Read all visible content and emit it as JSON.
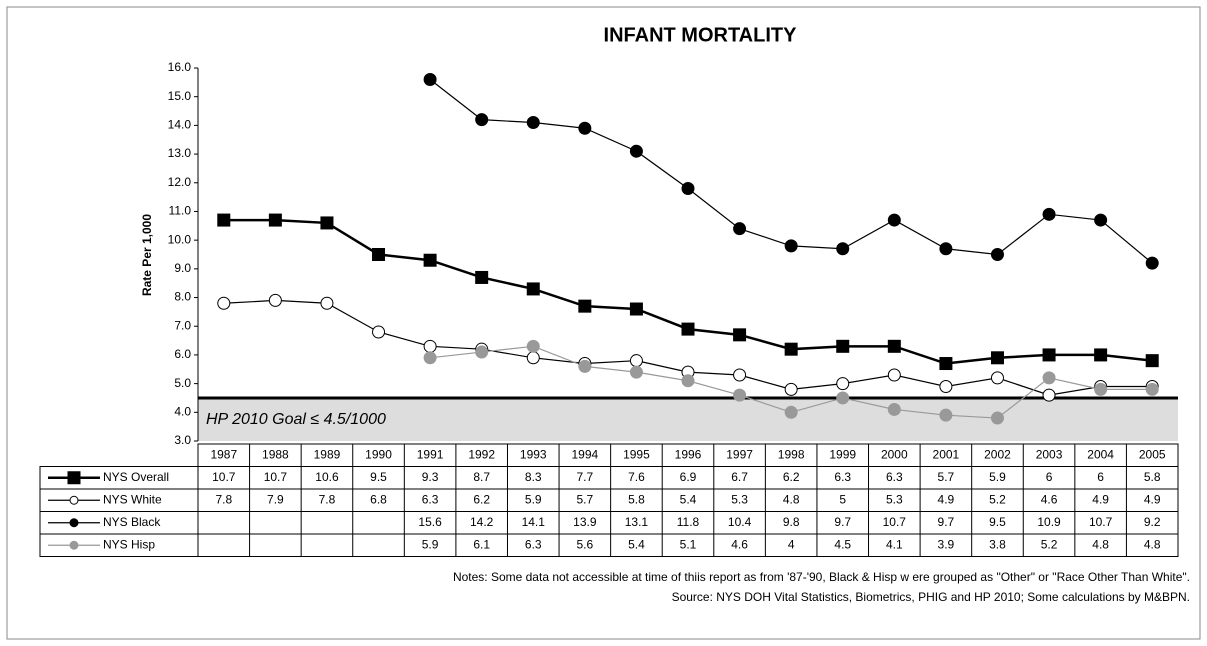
{
  "chart_data": {
    "type": "line",
    "title": "INFANT MORTALITY",
    "y_label": "Rate Per 1,000",
    "categories": [
      "1987",
      "1988",
      "1989",
      "1990",
      "1991",
      "1992",
      "1993",
      "1994",
      "1995",
      "1996",
      "1997",
      "1998",
      "1999",
      "2000",
      "2001",
      "2002",
      "2003",
      "2004",
      "2005"
    ],
    "series": [
      {
        "name": "NYS Overall",
        "color": "#000000",
        "marker": "square",
        "marker_fill": "#000000",
        "values": [
          10.7,
          10.7,
          10.6,
          9.5,
          9.3,
          8.7,
          8.3,
          7.7,
          7.6,
          6.9,
          6.7,
          6.2,
          6.3,
          6.3,
          5.7,
          5.9,
          6,
          6,
          5.8
        ]
      },
      {
        "name": "NYS White",
        "color": "#000000",
        "marker": "circle",
        "marker_fill": "#ffffff",
        "values": [
          7.8,
          7.9,
          7.8,
          6.8,
          6.3,
          6.2,
          5.9,
          5.7,
          5.8,
          5.4,
          5.3,
          4.8,
          5,
          5.3,
          4.9,
          5.2,
          4.6,
          4.9,
          4.9
        ]
      },
      {
        "name": "NYS Black",
        "color": "#000000",
        "marker": "circle",
        "marker_fill": "#000000",
        "values": [
          null,
          null,
          null,
          null,
          15.6,
          14.2,
          14.1,
          13.9,
          13.1,
          11.8,
          10.4,
          9.8,
          9.7,
          10.7,
          9.7,
          9.5,
          10.9,
          10.7,
          9.2
        ]
      },
      {
        "name": "NYS Hisp",
        "color": "#999999",
        "marker": "circle",
        "marker_fill": "#999999",
        "values": [
          null,
          null,
          null,
          null,
          5.9,
          6.1,
          6.3,
          5.6,
          5.4,
          5.1,
          4.6,
          4,
          4.5,
          4.1,
          3.9,
          3.8,
          5.2,
          4.8,
          4.8
        ]
      }
    ],
    "ylim": [
      3,
      16
    ],
    "yticks": [
      {
        "value": 3,
        "label": "3.0"
      },
      {
        "value": 4,
        "label": "4.0"
      },
      {
        "value": 5,
        "label": "5.0"
      },
      {
        "value": 6,
        "label": "6.0"
      },
      {
        "value": 7,
        "label": "7.0"
      },
      {
        "value": 8,
        "label": "8.0"
      },
      {
        "value": 9,
        "label": "9.0"
      },
      {
        "value": 10,
        "label": "10.0"
      },
      {
        "value": 11,
        "label": "11.0"
      },
      {
        "value": 12,
        "label": "12.0"
      },
      {
        "value": 13,
        "label": "13.0"
      },
      {
        "value": 14,
        "label": "14.0"
      },
      {
        "value": 15,
        "label": "15.0"
      },
      {
        "value": 16,
        "label": "16.0"
      }
    ],
    "goal": {
      "value": 4.5,
      "label": "HP 2010 Goal  ≤ 4.5/1000"
    },
    "notes": [
      "Notes: Some data not accessible at time of thiis report as from '87-'90, Black & Hisp w ere grouped as \"Other\" or \"Race Other Than White\".",
      "Source:  NYS DOH Vital Statistics, Biometrics, PHIG and HP 2010; Some calculations by M&BPN."
    ]
  }
}
